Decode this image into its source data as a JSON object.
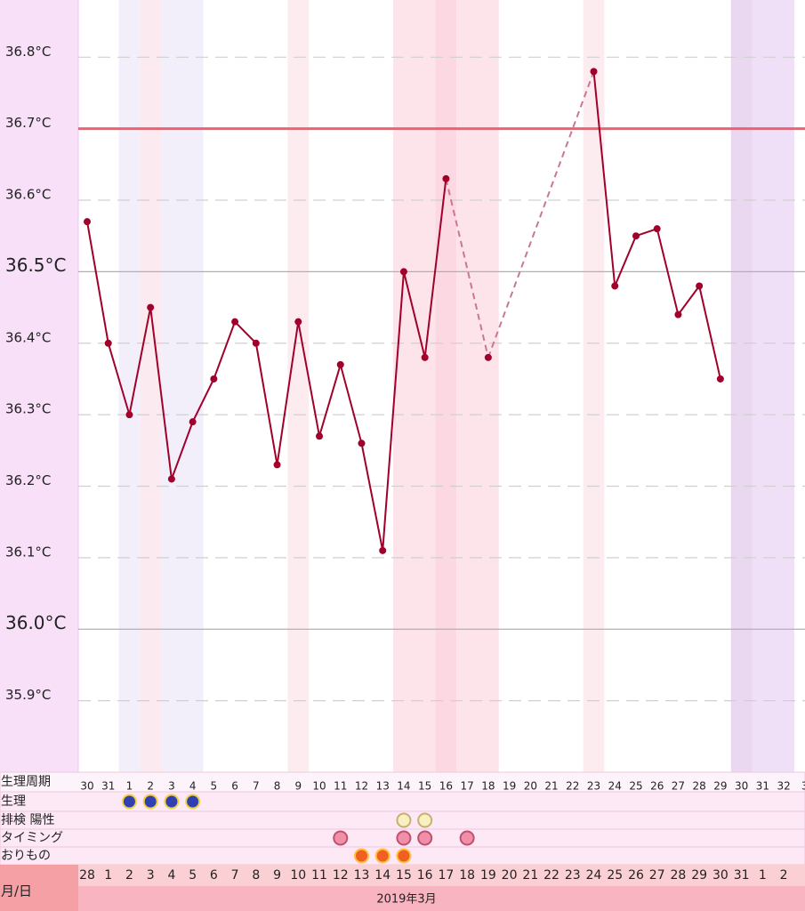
{
  "chart_data": {
    "type": "line",
    "categories": [
      "30",
      "31",
      "1",
      "2",
      "3",
      "4",
      "5",
      "6",
      "7",
      "8",
      "9",
      "10",
      "11",
      "12",
      "13",
      "14",
      "15",
      "16",
      "17",
      "18",
      "19",
      "20",
      "21",
      "22",
      "23",
      "24",
      "25",
      "26",
      "27",
      "28",
      "29",
      "30",
      "31",
      "32",
      "3"
    ],
    "series": [
      {
        "name": null,
        "color": "#a0002a",
        "values": [
          36.57,
          36.4,
          36.3,
          36.45,
          36.21,
          36.29,
          36.35,
          36.43,
          36.4,
          36.23,
          36.43,
          36.27,
          36.37,
          36.26,
          36.11,
          36.5,
          36.38,
          36.63,
          null,
          36.38,
          null,
          null,
          null,
          null,
          36.78,
          36.48,
          36.55,
          36.56,
          36.44,
          36.48,
          36.35,
          null,
          null,
          null,
          null
        ]
      }
    ],
    "gap_color": "#c87890",
    "coverline": 36.7,
    "coverline_color": "#f06070",
    "ylim": [
      35.8,
      36.88
    ],
    "yticks": [
      {
        "value": 35.9,
        "label": "35.9°C"
      },
      {
        "value": 36.0,
        "label": "36.0°C"
      },
      {
        "value": 36.1,
        "label": "36.1°C"
      },
      {
        "value": 36.2,
        "label": "36.2°C"
      },
      {
        "value": 36.3,
        "label": "36.3°C"
      },
      {
        "value": 36.4,
        "label": "36.4°C"
      },
      {
        "value": 36.5,
        "label": "36.5°C"
      },
      {
        "value": 36.6,
        "label": "36.6°C"
      },
      {
        "value": 36.7,
        "label": "36.7°C"
      },
      {
        "value": 36.8,
        "label": "36.8°C"
      }
    ],
    "grid": true,
    "row_labels": {
      "cycle": "生理周期",
      "period": "生理",
      "ovulation": "排検 陽性",
      "timing": "タイミング",
      "discharge": "おりもの",
      "date": "月/日"
    },
    "markers": {
      "period": [
        2,
        3,
        4,
        5
      ],
      "ovulation": [
        15,
        16
      ],
      "timing": [
        12,
        15,
        16,
        18
      ],
      "discharge": [
        13,
        14,
        15
      ]
    },
    "dates": [
      "28",
      "1",
      "2",
      "3",
      "4",
      "5",
      "6",
      "7",
      "8",
      "9",
      "10",
      "11",
      "12",
      "13",
      "14",
      "15",
      "16",
      "17",
      "18",
      "19",
      "20",
      "21",
      "22",
      "23",
      "24",
      "25",
      "26",
      "27",
      "28",
      "29",
      "30",
      "31",
      "1",
      "2",
      null
    ],
    "date_colors": [
      "#222",
      "#222",
      "#222",
      "#d02030",
      "#222",
      "#222",
      "#222",
      "#222",
      "#222",
      "#222",
      "#d02030",
      "#222",
      "#222",
      "#222",
      "#222",
      "#222",
      "#222",
      "#d02030",
      "#222",
      "#222",
      "#222",
      "#d02030",
      "#222",
      "#222",
      "#d02030",
      "#222",
      "#222",
      "#222",
      "#222",
      "#222",
      "#222",
      "#d02030",
      "#222",
      "#222",
      null
    ],
    "month": "2019年3月"
  }
}
